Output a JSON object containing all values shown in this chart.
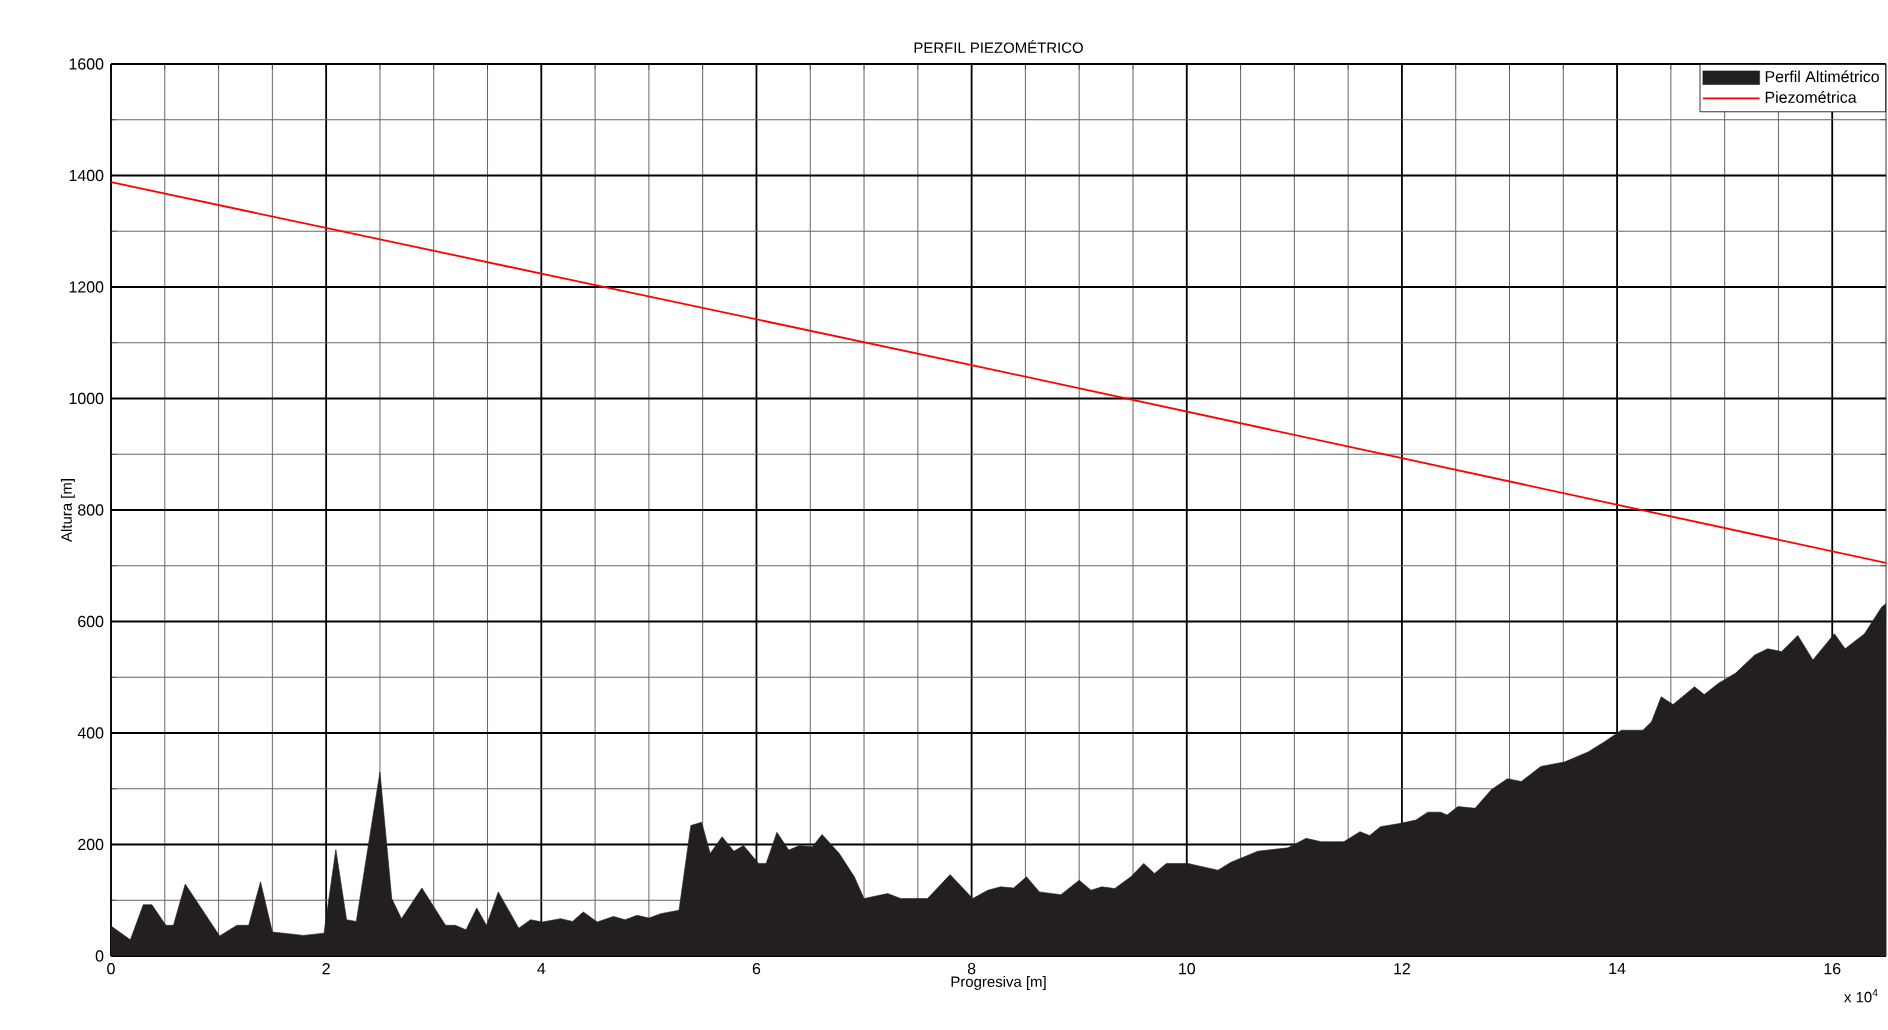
{
  "chart_data": {
    "type": "area",
    "title": "PERFIL PIEZOMÉTRICO",
    "xlabel": "Progresiva [m]",
    "ylabel": "Altura [m]",
    "annotations": [
      "x 10$^{4}$"
    ],
    "xlim": [
      0,
      16.5
    ],
    "xticks": [
      0,
      2,
      4,
      6,
      8,
      10,
      12,
      14,
      16
    ],
    "ylim": [
      0,
      1600
    ],
    "yticks": [
      0,
      200,
      400,
      600,
      800,
      1000,
      1200,
      1400,
      1600
    ],
    "grid": true,
    "legend": "top right",
    "series": [
      {
        "name": "Perfil Altimétrico",
        "color": "#231f20",
        "x": [
          0,
          0.18,
          0.3,
          0.38,
          0.51,
          0.58,
          0.69,
          1.01,
          1.17,
          1.28,
          1.39,
          1.5,
          1.79,
          1.98,
          2.09,
          2.19,
          2.28,
          2.5,
          2.61,
          2.7,
          2.89,
          3.11,
          3.2,
          3.3,
          3.4,
          3.49,
          3.6,
          3.79,
          3.9,
          4.01,
          4.18,
          4.29,
          4.39,
          4.52,
          4.67,
          4.78,
          4.89,
          5.0,
          5.11,
          5.28,
          5.39,
          5.49,
          5.57,
          5.68,
          5.79,
          5.88,
          6.02,
          6.09,
          6.19,
          6.3,
          6.4,
          6.52,
          6.61,
          6.77,
          6.91,
          7.0,
          7.22,
          7.34,
          7.59,
          7.8,
          8.01,
          8.15,
          8.27,
          8.39,
          8.51,
          8.63,
          8.83,
          9.0,
          9.11,
          9.21,
          9.33,
          9.48,
          9.6,
          9.7,
          9.81,
          10.01,
          10.29,
          10.41,
          10.66,
          10.94,
          11.11,
          11.25,
          11.46,
          11.61,
          11.7,
          11.8,
          11.99,
          12.13,
          12.24,
          12.36,
          12.42,
          12.52,
          12.68,
          12.83,
          12.98,
          13.11,
          13.29,
          13.51,
          13.73,
          13.88,
          14.04,
          14.24,
          14.32,
          14.41,
          14.52,
          14.72,
          14.81,
          14.94,
          15.1,
          15.28,
          15.4,
          15.53,
          15.68,
          15.82,
          16.02,
          16.12,
          16.3,
          16.46,
          16.5
        ],
        "values": [
          54,
          29,
          92,
          92,
          55,
          55,
          129,
          36,
          55,
          55,
          133,
          43,
          37,
          41,
          191,
          65,
          62,
          330,
          103,
          67,
          122,
          55,
          55,
          47,
          86,
          55,
          115,
          50,
          65,
          61,
          67,
          62,
          79,
          61,
          71,
          65,
          73,
          68,
          76,
          82,
          234,
          240,
          184,
          214,
          188,
          198,
          166,
          166,
          222,
          190,
          198,
          196,
          218,
          184,
          142,
          103,
          112,
          103,
          103,
          146,
          103,
          118,
          124,
          122,
          142,
          115,
          110,
          136,
          118,
          124,
          121,
          142,
          166,
          148,
          166,
          166,
          154,
          168,
          188,
          194,
          211,
          205,
          205,
          223,
          216,
          232,
          238,
          244,
          258,
          258,
          253,
          268,
          265,
          298,
          318,
          313,
          340,
          348,
          366,
          384,
          405,
          405,
          420,
          465,
          451,
          483,
          469,
          489,
          507,
          540,
          551,
          546,
          575,
          531,
          578,
          551,
          578,
          626,
          632
        ]
      },
      {
        "name": "Piezométrica",
        "type": "line",
        "color": "#ff0000",
        "x": [
          0,
          4,
          8,
          12,
          16.5
        ],
        "values": [
          1388,
          1224,
          1060,
          893,
          705
        ]
      }
    ]
  }
}
